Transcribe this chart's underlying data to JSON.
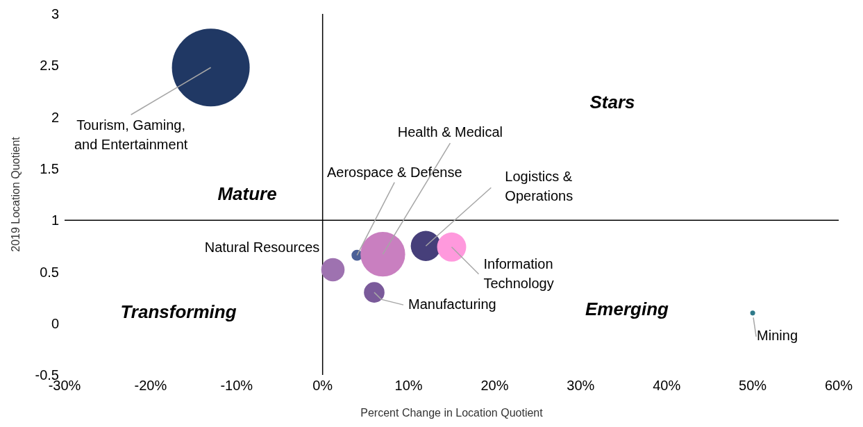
{
  "chart_data": {
    "type": "bubble",
    "xlabel": "Percent Change in Location Quotient",
    "ylabel": "2019 Location Quotient",
    "xlim": [
      -30,
      60
    ],
    "xticks": [
      {
        "value": -30,
        "label": "-30%"
      },
      {
        "value": -20,
        "label": "-20%"
      },
      {
        "value": -10,
        "label": "-10%"
      },
      {
        "value": 0,
        "label": "0%"
      },
      {
        "value": 10,
        "label": "10%"
      },
      {
        "value": 20,
        "label": "20%"
      },
      {
        "value": 30,
        "label": "30%"
      },
      {
        "value": 40,
        "label": "40%"
      },
      {
        "value": 50,
        "label": "50%"
      },
      {
        "value": 60,
        "label": "60%"
      }
    ],
    "ylim": [
      -0.5,
      3
    ],
    "yticks": [
      -0.5,
      0,
      0.5,
      1,
      1.5,
      2,
      2.5,
      3
    ],
    "series": [
      {
        "name": "Tourism, Gaming, and Entertainment",
        "color": "#203864",
        "x": [
          -13
        ],
        "values": [
          2.48
        ],
        "sizes": [
          1
        ]
      },
      {
        "name": "Aerospace & Defense",
        "color": "#4a5f96",
        "x": [
          4
        ],
        "values": [
          0.66
        ],
        "sizes": [
          0.02
        ]
      },
      {
        "name": "Health & Medical",
        "color": "#c97fc0",
        "x": [
          7
        ],
        "values": [
          0.67
        ],
        "sizes": [
          0.33
        ]
      },
      {
        "name": "Logistics & Operations",
        "color": "#463f7a",
        "x": [
          12
        ],
        "values": [
          0.75
        ],
        "sizes": [
          0.15
        ]
      },
      {
        "name": "Information Technology",
        "color": "#ff99dd",
        "x": [
          15
        ],
        "values": [
          0.74
        ],
        "sizes": [
          0.14
        ]
      },
      {
        "name": "Natural Resources",
        "color": "#9e72b0",
        "x": [
          1.2
        ],
        "values": [
          0.52
        ],
        "sizes": [
          0.09
        ]
      },
      {
        "name": "Manufacturing",
        "color": "#7a5a9a",
        "x": [
          6
        ],
        "values": [
          0.3
        ],
        "sizes": [
          0.07
        ]
      },
      {
        "name": "Mining",
        "color": "#2f7a8a",
        "x": [
          50
        ],
        "values": [
          0.1
        ],
        "sizes": [
          0.004
        ]
      }
    ],
    "ref_lines": [
      {
        "axis": "x",
        "value": 0,
        "color": "#000000"
      },
      {
        "axis": "y",
        "value": 1,
        "color": "#000000"
      }
    ],
    "annotations": [
      "Stars",
      "Mature",
      "Transforming",
      "Emerging"
    ],
    "grid": false,
    "legend": false
  }
}
